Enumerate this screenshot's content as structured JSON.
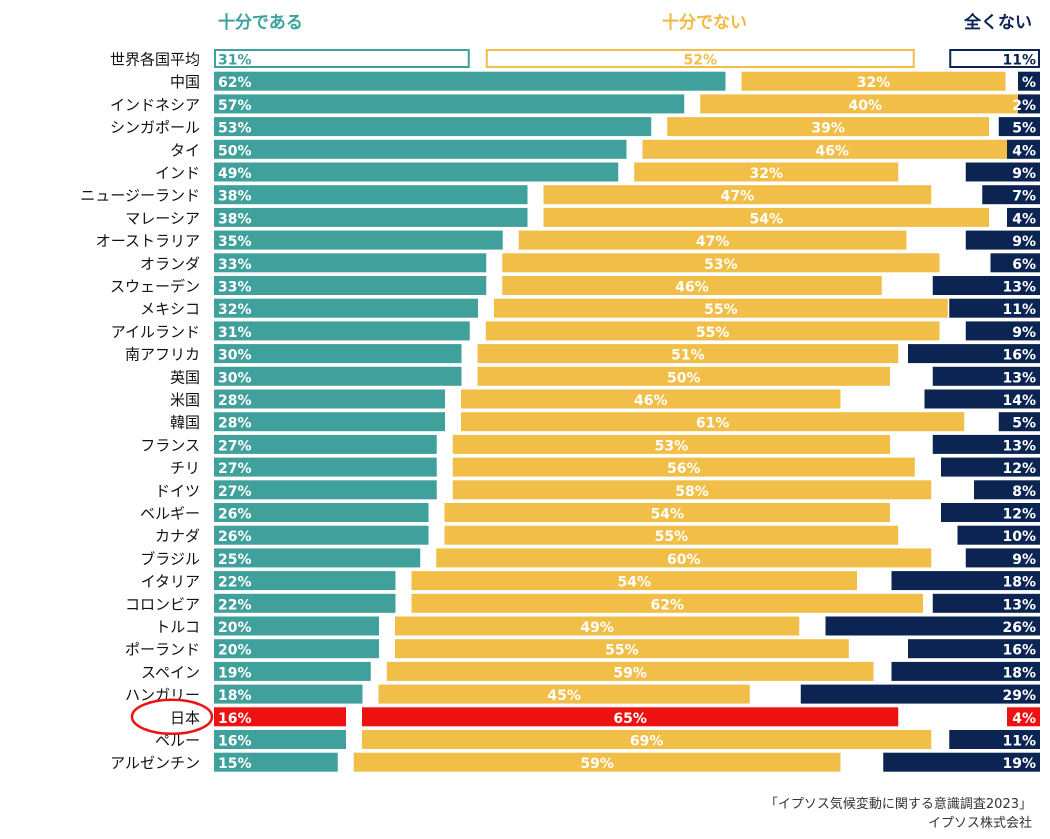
{
  "chart_data": {
    "type": "bar",
    "stacked": true,
    "orientation": "horizontal",
    "headers": [
      "十分である",
      "十分でない",
      "全くない"
    ],
    "series": [
      {
        "name": "十分である",
        "color": "#40a09b"
      },
      {
        "name": "十分でない",
        "color": "#f1be48"
      },
      {
        "name": "全くない",
        "color": "#0b2452"
      }
    ],
    "header_colors": [
      "#3aa39c",
      "#f0b93f",
      "#0b2452"
    ],
    "highlight_color": "#ee1111",
    "categories": [
      "世界各国平均",
      "中国",
      "インドネシア",
      "シンガポール",
      "タイ",
      "インド",
      "ニュージーランド",
      "マレーシア",
      "オーストラリア",
      "オランダ",
      "スウェーデン",
      "メキシコ",
      "アイルランド",
      "南アフリカ",
      "英国",
      "米国",
      "韓国",
      "フランス",
      "チリ",
      "ドイツ",
      "ベルギー",
      "カナダ",
      "ブラジル",
      "イタリア",
      "コロンビア",
      "トルコ",
      "ポーランド",
      "スペイン",
      "ハンガリー",
      "日本",
      "ペルー",
      "アルゼンチン"
    ],
    "rows": [
      {
        "label": "世界各国平均",
        "values": [
          31,
          52,
          11
        ],
        "texts": [
          "31%",
          "52%",
          "11%"
        ],
        "outline": true
      },
      {
        "label": "中国",
        "values": [
          62,
          32,
          2
        ],
        "texts": [
          "62%",
          "32%",
          "%"
        ]
      },
      {
        "label": "インドネシア",
        "values": [
          57,
          40,
          2
        ],
        "texts": [
          "57%",
          "40%",
          "2%"
        ]
      },
      {
        "label": "シンガポール",
        "values": [
          53,
          39,
          5
        ],
        "texts": [
          "53%",
          "39%",
          "5%"
        ]
      },
      {
        "label": "タイ",
        "values": [
          50,
          46,
          4
        ],
        "texts": [
          "50%",
          "46%",
          "4%"
        ]
      },
      {
        "label": "インド",
        "values": [
          49,
          32,
          9
        ],
        "texts": [
          "49%",
          "32%",
          "9%"
        ]
      },
      {
        "label": "ニュージーランド",
        "values": [
          38,
          47,
          7
        ],
        "texts": [
          "38%",
          "47%",
          "7%"
        ]
      },
      {
        "label": "マレーシア",
        "values": [
          38,
          54,
          4
        ],
        "texts": [
          "38%",
          "54%",
          "4%"
        ]
      },
      {
        "label": "オーストラリア",
        "values": [
          35,
          47,
          9
        ],
        "texts": [
          "35%",
          "47%",
          "9%"
        ]
      },
      {
        "label": "オランダ",
        "values": [
          33,
          53,
          6
        ],
        "texts": [
          "33%",
          "53%",
          "6%"
        ]
      },
      {
        "label": "スウェーデン",
        "values": [
          33,
          46,
          13
        ],
        "texts": [
          "33%",
          "46%",
          "13%"
        ]
      },
      {
        "label": "メキシコ",
        "values": [
          32,
          55,
          11
        ],
        "texts": [
          "32%",
          "55%",
          "11%"
        ]
      },
      {
        "label": "アイルランド",
        "values": [
          31,
          55,
          9
        ],
        "texts": [
          "31%",
          "55%",
          "9%"
        ]
      },
      {
        "label": "南アフリカ",
        "values": [
          30,
          51,
          16
        ],
        "texts": [
          "30%",
          "51%",
          "16%"
        ]
      },
      {
        "label": "英国",
        "values": [
          30,
          50,
          13
        ],
        "texts": [
          "30%",
          "50%",
          "13%"
        ]
      },
      {
        "label": "米国",
        "values": [
          28,
          46,
          14
        ],
        "texts": [
          "28%",
          "46%",
          "14%"
        ]
      },
      {
        "label": "韓国",
        "values": [
          28,
          61,
          5
        ],
        "texts": [
          "28%",
          "61%",
          "5%"
        ]
      },
      {
        "label": "フランス",
        "values": [
          27,
          53,
          13
        ],
        "texts": [
          "27%",
          "53%",
          "13%"
        ]
      },
      {
        "label": "チリ",
        "values": [
          27,
          56,
          12
        ],
        "texts": [
          "27%",
          "56%",
          "12%"
        ]
      },
      {
        "label": "ドイツ",
        "values": [
          27,
          58,
          8
        ],
        "texts": [
          "27%",
          "58%",
          "8%"
        ]
      },
      {
        "label": "ベルギー",
        "values": [
          26,
          54,
          12
        ],
        "texts": [
          "26%",
          "54%",
          "12%"
        ]
      },
      {
        "label": "カナダ",
        "values": [
          26,
          55,
          10
        ],
        "texts": [
          "26%",
          "55%",
          "10%"
        ]
      },
      {
        "label": "ブラジル",
        "values": [
          25,
          60,
          9
        ],
        "texts": [
          "25%",
          "60%",
          "9%"
        ]
      },
      {
        "label": "イタリア",
        "values": [
          22,
          54,
          18
        ],
        "texts": [
          "22%",
          "54%",
          "18%"
        ]
      },
      {
        "label": "コロンビア",
        "values": [
          22,
          62,
          13
        ],
        "texts": [
          "22%",
          "62%",
          "13%"
        ]
      },
      {
        "label": "トルコ",
        "values": [
          20,
          49,
          26
        ],
        "texts": [
          "20%",
          "49%",
          "26%"
        ]
      },
      {
        "label": "ポーランド",
        "values": [
          20,
          55,
          16
        ],
        "texts": [
          "20%",
          "55%",
          "16%"
        ]
      },
      {
        "label": "スペイン",
        "values": [
          19,
          59,
          18
        ],
        "texts": [
          "19%",
          "59%",
          "18%"
        ]
      },
      {
        "label": "ハンガリー",
        "values": [
          18,
          45,
          29
        ],
        "texts": [
          "18%",
          "45%",
          "29%"
        ]
      },
      {
        "label": "日本",
        "values": [
          16,
          65,
          4
        ],
        "texts": [
          "16%",
          "65%",
          "4%"
        ],
        "highlight": true
      },
      {
        "label": "ペルー",
        "values": [
          16,
          69,
          11
        ],
        "texts": [
          "16%",
          "69%",
          "11%"
        ]
      },
      {
        "label": "アルゼンチン",
        "values": [
          15,
          59,
          19
        ],
        "texts": [
          "15%",
          "59%",
          "19%"
        ]
      }
    ]
  },
  "source": {
    "line1": "「イプソス気候変動に関する意識調査2023」",
    "line2": "イプソス株式会社"
  }
}
